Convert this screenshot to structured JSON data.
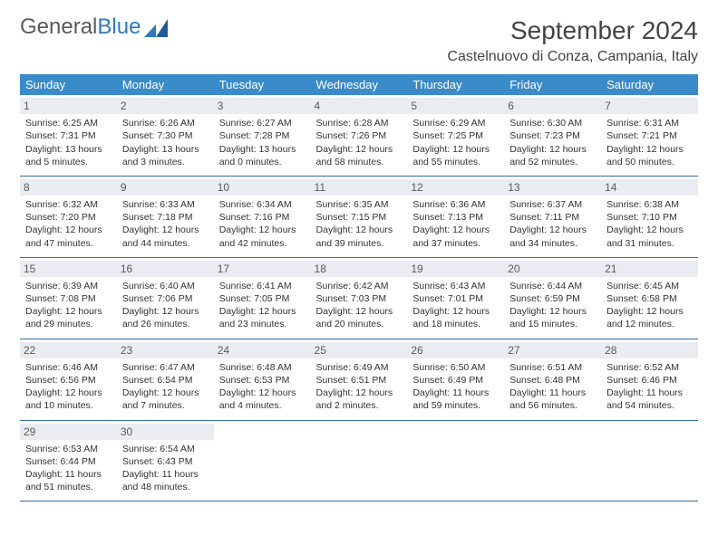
{
  "brand": {
    "part1": "General",
    "part2": "Blue"
  },
  "title": "September 2024",
  "location": "Castelnuovo di Conza, Campania, Italy",
  "colors": {
    "header_bg": "#3a8bc9",
    "header_text": "#ffffff",
    "daynum_bg": "#e9edf1",
    "row_border": "#2f6fa8",
    "body_text": "#333333",
    "brand_gray": "#5a5a5a",
    "brand_blue": "#2b7bbf"
  },
  "weekdays": [
    "Sunday",
    "Monday",
    "Tuesday",
    "Wednesday",
    "Thursday",
    "Friday",
    "Saturday"
  ],
  "weeks": [
    [
      {
        "day": "1",
        "sunrise": "Sunrise: 6:25 AM",
        "sunset": "Sunset: 7:31 PM",
        "daylight": "Daylight: 13 hours and 5 minutes."
      },
      {
        "day": "2",
        "sunrise": "Sunrise: 6:26 AM",
        "sunset": "Sunset: 7:30 PM",
        "daylight": "Daylight: 13 hours and 3 minutes."
      },
      {
        "day": "3",
        "sunrise": "Sunrise: 6:27 AM",
        "sunset": "Sunset: 7:28 PM",
        "daylight": "Daylight: 13 hours and 0 minutes."
      },
      {
        "day": "4",
        "sunrise": "Sunrise: 6:28 AM",
        "sunset": "Sunset: 7:26 PM",
        "daylight": "Daylight: 12 hours and 58 minutes."
      },
      {
        "day": "5",
        "sunrise": "Sunrise: 6:29 AM",
        "sunset": "Sunset: 7:25 PM",
        "daylight": "Daylight: 12 hours and 55 minutes."
      },
      {
        "day": "6",
        "sunrise": "Sunrise: 6:30 AM",
        "sunset": "Sunset: 7:23 PM",
        "daylight": "Daylight: 12 hours and 52 minutes."
      },
      {
        "day": "7",
        "sunrise": "Sunrise: 6:31 AM",
        "sunset": "Sunset: 7:21 PM",
        "daylight": "Daylight: 12 hours and 50 minutes."
      }
    ],
    [
      {
        "day": "8",
        "sunrise": "Sunrise: 6:32 AM",
        "sunset": "Sunset: 7:20 PM",
        "daylight": "Daylight: 12 hours and 47 minutes."
      },
      {
        "day": "9",
        "sunrise": "Sunrise: 6:33 AM",
        "sunset": "Sunset: 7:18 PM",
        "daylight": "Daylight: 12 hours and 44 minutes."
      },
      {
        "day": "10",
        "sunrise": "Sunrise: 6:34 AM",
        "sunset": "Sunset: 7:16 PM",
        "daylight": "Daylight: 12 hours and 42 minutes."
      },
      {
        "day": "11",
        "sunrise": "Sunrise: 6:35 AM",
        "sunset": "Sunset: 7:15 PM",
        "daylight": "Daylight: 12 hours and 39 minutes."
      },
      {
        "day": "12",
        "sunrise": "Sunrise: 6:36 AM",
        "sunset": "Sunset: 7:13 PM",
        "daylight": "Daylight: 12 hours and 37 minutes."
      },
      {
        "day": "13",
        "sunrise": "Sunrise: 6:37 AM",
        "sunset": "Sunset: 7:11 PM",
        "daylight": "Daylight: 12 hours and 34 minutes."
      },
      {
        "day": "14",
        "sunrise": "Sunrise: 6:38 AM",
        "sunset": "Sunset: 7:10 PM",
        "daylight": "Daylight: 12 hours and 31 minutes."
      }
    ],
    [
      {
        "day": "15",
        "sunrise": "Sunrise: 6:39 AM",
        "sunset": "Sunset: 7:08 PM",
        "daylight": "Daylight: 12 hours and 29 minutes."
      },
      {
        "day": "16",
        "sunrise": "Sunrise: 6:40 AM",
        "sunset": "Sunset: 7:06 PM",
        "daylight": "Daylight: 12 hours and 26 minutes."
      },
      {
        "day": "17",
        "sunrise": "Sunrise: 6:41 AM",
        "sunset": "Sunset: 7:05 PM",
        "daylight": "Daylight: 12 hours and 23 minutes."
      },
      {
        "day": "18",
        "sunrise": "Sunrise: 6:42 AM",
        "sunset": "Sunset: 7:03 PM",
        "daylight": "Daylight: 12 hours and 20 minutes."
      },
      {
        "day": "19",
        "sunrise": "Sunrise: 6:43 AM",
        "sunset": "Sunset: 7:01 PM",
        "daylight": "Daylight: 12 hours and 18 minutes."
      },
      {
        "day": "20",
        "sunrise": "Sunrise: 6:44 AM",
        "sunset": "Sunset: 6:59 PM",
        "daylight": "Daylight: 12 hours and 15 minutes."
      },
      {
        "day": "21",
        "sunrise": "Sunrise: 6:45 AM",
        "sunset": "Sunset: 6:58 PM",
        "daylight": "Daylight: 12 hours and 12 minutes."
      }
    ],
    [
      {
        "day": "22",
        "sunrise": "Sunrise: 6:46 AM",
        "sunset": "Sunset: 6:56 PM",
        "daylight": "Daylight: 12 hours and 10 minutes."
      },
      {
        "day": "23",
        "sunrise": "Sunrise: 6:47 AM",
        "sunset": "Sunset: 6:54 PM",
        "daylight": "Daylight: 12 hours and 7 minutes."
      },
      {
        "day": "24",
        "sunrise": "Sunrise: 6:48 AM",
        "sunset": "Sunset: 6:53 PM",
        "daylight": "Daylight: 12 hours and 4 minutes."
      },
      {
        "day": "25",
        "sunrise": "Sunrise: 6:49 AM",
        "sunset": "Sunset: 6:51 PM",
        "daylight": "Daylight: 12 hours and 2 minutes."
      },
      {
        "day": "26",
        "sunrise": "Sunrise: 6:50 AM",
        "sunset": "Sunset: 6:49 PM",
        "daylight": "Daylight: 11 hours and 59 minutes."
      },
      {
        "day": "27",
        "sunrise": "Sunrise: 6:51 AM",
        "sunset": "Sunset: 6:48 PM",
        "daylight": "Daylight: 11 hours and 56 minutes."
      },
      {
        "day": "28",
        "sunrise": "Sunrise: 6:52 AM",
        "sunset": "Sunset: 6:46 PM",
        "daylight": "Daylight: 11 hours and 54 minutes."
      }
    ],
    [
      {
        "day": "29",
        "sunrise": "Sunrise: 6:53 AM",
        "sunset": "Sunset: 6:44 PM",
        "daylight": "Daylight: 11 hours and 51 minutes."
      },
      {
        "day": "30",
        "sunrise": "Sunrise: 6:54 AM",
        "sunset": "Sunset: 6:43 PM",
        "daylight": "Daylight: 11 hours and 48 minutes."
      },
      null,
      null,
      null,
      null,
      null
    ]
  ]
}
